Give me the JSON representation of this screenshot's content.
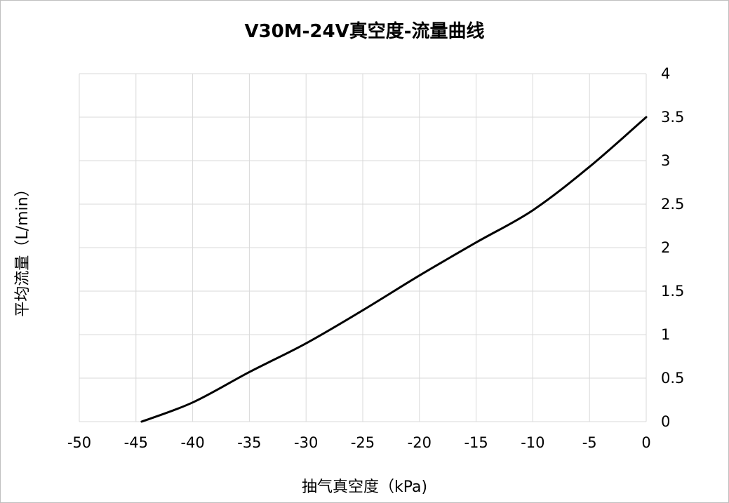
{
  "chart_data": {
    "type": "line",
    "title": "V30M-24V真空度-流量曲线",
    "xlabel": "抽气真空度（kPa)",
    "ylabel": "平均流量（L/min）",
    "xlim": [
      -50,
      0
    ],
    "ylim": [
      0,
      4
    ],
    "x_ticks": [
      -50,
      -45,
      -40,
      -35,
      -30,
      -25,
      -20,
      -15,
      -10,
      -5,
      0
    ],
    "x_tick_labels": [
      "-50",
      "-45",
      "-40",
      "-35",
      "-30",
      "-25",
      "-20",
      "-15",
      "-10",
      "-5",
      "0"
    ],
    "y_ticks": [
      0,
      0.5,
      1,
      1.5,
      2,
      2.5,
      3,
      3.5,
      4
    ],
    "y_tick_labels": [
      "0",
      "0.5",
      "1",
      "1.5",
      "2",
      "2.5",
      "3",
      "3.5",
      "4"
    ],
    "y_axis_side": "right",
    "grid": true,
    "legend": "none",
    "series": [
      {
        "color": "#000000",
        "x": [
          -44.5,
          -40,
          -35,
          -30,
          -25,
          -20,
          -15,
          -10,
          -5,
          0
        ],
        "y": [
          0,
          0.22,
          0.57,
          0.9,
          1.28,
          1.68,
          2.06,
          2.43,
          2.93,
          3.5
        ]
      }
    ]
  }
}
